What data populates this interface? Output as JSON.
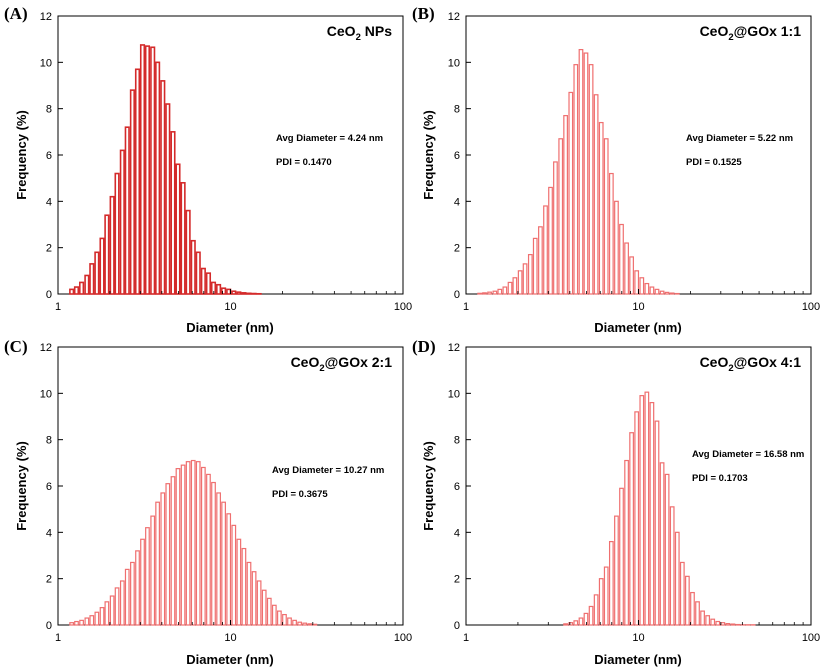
{
  "chart_data": [
    {
      "type": "bar",
      "panel": "(A)",
      "title_main": "CeO",
      "title_sub": "2",
      "title_rest": " NPs",
      "xlabel": "Diameter (nm)",
      "ylabel": "Frequency (%)",
      "xscale": "log",
      "xlim": [
        1,
        100
      ],
      "ylim": [
        0,
        12
      ],
      "xticks": [
        1,
        10,
        100
      ],
      "xtick_labels": [
        "1",
        "10",
        "100"
      ],
      "yticks": [
        0,
        2,
        4,
        6,
        8,
        10,
        12
      ],
      "ytick_labels": [
        "0",
        "2",
        "4",
        "6",
        "8",
        "10",
        "12"
      ],
      "bar_color": "#d42a2a",
      "bar_fill": "#ffffff",
      "bar_stroke_width": 1.6,
      "annotations": [
        "Avg Diameter = 4.24 nm",
        "PDI = 0.1470"
      ],
      "x": [
        1.2,
        1.28,
        1.37,
        1.47,
        1.57,
        1.68,
        1.8,
        1.92,
        2.06,
        2.2,
        2.36,
        2.52,
        2.7,
        2.89,
        3.09,
        3.3,
        3.54,
        3.78,
        4.05,
        4.33,
        4.64,
        4.96,
        5.31,
        5.68,
        6.08,
        6.5,
        6.96,
        7.45,
        7.97,
        8.53,
        9.12,
        9.76,
        10.45,
        11.18,
        11.96,
        12.8,
        13.7,
        14.65
      ],
      "values": [
        0.2,
        0.3,
        0.5,
        0.8,
        1.3,
        1.8,
        2.4,
        3.4,
        4.2,
        5.2,
        6.2,
        7.2,
        8.8,
        9.7,
        10.75,
        10.7,
        10.65,
        10.0,
        9.2,
        8.2,
        7.0,
        5.6,
        4.8,
        3.6,
        2.3,
        1.8,
        1.1,
        0.9,
        0.5,
        0.4,
        0.25,
        0.2,
        0.12,
        0.08,
        0.05,
        0.03,
        0.02,
        0.01
      ]
    },
    {
      "type": "bar",
      "panel": "(B)",
      "title_main": "CeO",
      "title_sub": "2",
      "title_rest": "@GOx 1:1",
      "xlabel": "Diameter (nm)",
      "ylabel": "Frequency (%)",
      "xscale": "log",
      "xlim": [
        1,
        100
      ],
      "ylim": [
        0,
        12
      ],
      "xticks": [
        1,
        10,
        100
      ],
      "xtick_labels": [
        "1",
        "10",
        "100"
      ],
      "yticks": [
        0,
        2,
        4,
        6,
        8,
        10,
        12
      ],
      "ytick_labels": [
        "0",
        "2",
        "4",
        "6",
        "8",
        "10",
        "12"
      ],
      "bar_color": "#ef6f6f",
      "bar_fill": "#ffffff",
      "bar_stroke_width": 1.2,
      "annotations": [
        "Avg Diameter = 5.22 nm",
        "PDI = 0.1525"
      ],
      "x": [
        1.2,
        1.28,
        1.37,
        1.47,
        1.57,
        1.68,
        1.8,
        1.92,
        2.06,
        2.2,
        2.36,
        2.52,
        2.7,
        2.89,
        3.09,
        3.3,
        3.54,
        3.78,
        4.05,
        4.33,
        4.64,
        4.96,
        5.31,
        5.68,
        6.08,
        6.5,
        6.96,
        7.45,
        7.97,
        8.53,
        9.12,
        9.76,
        10.45,
        11.18,
        11.96,
        12.8,
        13.7,
        14.65,
        15.68,
        16.78
      ],
      "values": [
        0.03,
        0.05,
        0.08,
        0.12,
        0.2,
        0.3,
        0.5,
        0.7,
        1.0,
        1.3,
        1.7,
        2.4,
        2.9,
        3.8,
        4.6,
        5.7,
        6.7,
        7.7,
        8.7,
        9.9,
        10.55,
        10.4,
        9.9,
        8.6,
        7.4,
        6.7,
        5.2,
        4.0,
        3.0,
        2.2,
        1.6,
        1.0,
        0.7,
        0.45,
        0.3,
        0.2,
        0.12,
        0.07,
        0.04,
        0.02
      ]
    },
    {
      "type": "bar",
      "panel": "(C)",
      "title_main": "CeO",
      "title_sub": "2",
      "title_rest": "@GOx 2:1",
      "xlabel": "Diameter (nm)",
      "ylabel": "Frequency (%)",
      "xscale": "log",
      "xlim": [
        1,
        100
      ],
      "ylim": [
        0,
        12
      ],
      "xticks": [
        1,
        10,
        100
      ],
      "xtick_labels": [
        "1",
        "10",
        "100"
      ],
      "yticks": [
        0,
        2,
        4,
        6,
        8,
        10,
        12
      ],
      "ytick_labels": [
        "0",
        "2",
        "4",
        "6",
        "8",
        "10",
        "12"
      ],
      "bar_color": "#ef6f6f",
      "bar_fill": "#ffffff",
      "bar_stroke_width": 1.2,
      "annotations": [
        "Avg Diameter = 10.27 nm",
        "PDI = 0.3675"
      ],
      "x": [
        1.2,
        1.28,
        1.37,
        1.47,
        1.57,
        1.68,
        1.8,
        1.92,
        2.06,
        2.2,
        2.36,
        2.52,
        2.7,
        2.89,
        3.09,
        3.3,
        3.54,
        3.78,
        4.05,
        4.33,
        4.64,
        4.96,
        5.31,
        5.68,
        6.08,
        6.5,
        6.96,
        7.45,
        7.97,
        8.53,
        9.12,
        9.76,
        10.45,
        11.18,
        11.96,
        12.8,
        13.7,
        14.65,
        15.68,
        16.78,
        17.95,
        19.2,
        20.55,
        21.98,
        23.52,
        25.17,
        26.93,
        28.81,
        30.83
      ],
      "values": [
        0.1,
        0.15,
        0.2,
        0.3,
        0.4,
        0.55,
        0.75,
        1.0,
        1.25,
        1.6,
        1.9,
        2.4,
        2.7,
        3.2,
        3.7,
        4.2,
        4.7,
        5.3,
        5.7,
        6.1,
        6.4,
        6.75,
        6.9,
        7.05,
        7.1,
        7.05,
        6.8,
        6.5,
        6.15,
        5.7,
        5.3,
        4.8,
        4.3,
        3.7,
        3.3,
        2.7,
        2.3,
        1.9,
        1.5,
        1.15,
        0.85,
        0.6,
        0.45,
        0.3,
        0.2,
        0.12,
        0.08,
        0.05,
        0.03
      ]
    },
    {
      "type": "bar",
      "panel": "(D)",
      "title_main": "CeO",
      "title_sub": "2",
      "title_rest": "@GOx 4:1",
      "xlabel": "Diameter (nm)",
      "ylabel": "Frequency (%)",
      "xscale": "log",
      "xlim": [
        1,
        100
      ],
      "ylim": [
        0,
        12
      ],
      "xticks": [
        1,
        10,
        100
      ],
      "xtick_labels": [
        "1",
        "10",
        "100"
      ],
      "yticks": [
        0,
        2,
        4,
        6,
        8,
        10,
        12
      ],
      "ytick_labels": [
        "0",
        "2",
        "4",
        "6",
        "8",
        "10",
        "12"
      ],
      "bar_color": "#ef6f6f",
      "bar_fill": "#ffffff",
      "bar_stroke_width": 1.2,
      "annotations": [
        "Avg Diameter = 16.58 nm",
        "PDI = 0.1703"
      ],
      "x": [
        3.78,
        4.05,
        4.33,
        4.64,
        4.96,
        5.31,
        5.68,
        6.08,
        6.5,
        6.96,
        7.45,
        7.97,
        8.53,
        9.12,
        9.76,
        10.45,
        11.18,
        11.96,
        12.8,
        13.7,
        14.65,
        15.68,
        16.78,
        17.95,
        19.2,
        20.55,
        21.98,
        23.52,
        25.17,
        26.93,
        28.81,
        30.83,
        32.98,
        35.29,
        37.76,
        40.4,
        43.2,
        46.2
      ],
      "values": [
        0.05,
        0.1,
        0.18,
        0.3,
        0.5,
        0.8,
        1.3,
        2.0,
        2.5,
        3.6,
        4.7,
        5.9,
        7.1,
        8.3,
        9.2,
        9.9,
        10.05,
        9.6,
        8.8,
        7.0,
        6.5,
        5.1,
        4.0,
        2.7,
        2.1,
        1.4,
        1.0,
        0.6,
        0.4,
        0.25,
        0.15,
        0.1,
        0.06,
        0.04,
        0.02,
        0.01,
        0.01,
        0.01
      ]
    }
  ]
}
